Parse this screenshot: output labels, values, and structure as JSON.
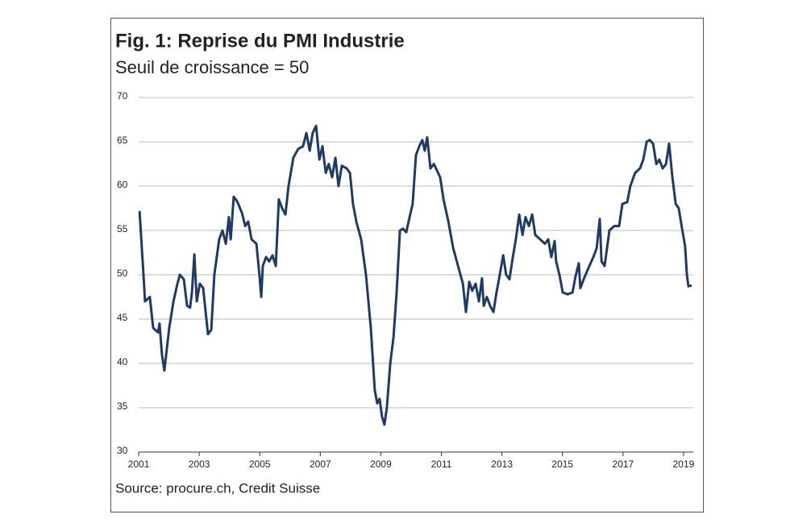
{
  "chart_data": {
    "type": "line",
    "title": "Fig. 1: Reprise du PMI Industrie",
    "subtitle": "Seuil de croissance = 50",
    "source": "Source: procure.ch, Credit Suisse",
    "color": "#1f3a63",
    "x": [
      2001.03,
      2001.16,
      2001.21,
      2001.37,
      2001.48,
      2001.64,
      2001.69,
      2001.77,
      2001.85,
      2002.01,
      2002.15,
      2002.28,
      2002.36,
      2002.49,
      2002.6,
      2002.7,
      2002.76,
      2002.84,
      2002.92,
      2003.02,
      2003.13,
      2003.29,
      2003.4,
      2003.5,
      2003.66,
      2003.77,
      2003.88,
      2003.98,
      2004.04,
      2004.14,
      2004.25,
      2004.41,
      2004.52,
      2004.62,
      2004.73,
      2004.89,
      2004.99,
      2005.05,
      2005.1,
      2005.21,
      2005.31,
      2005.42,
      2005.53,
      2005.63,
      2005.74,
      2005.85,
      2005.95,
      2006.11,
      2006.27,
      2006.43,
      2006.54,
      2006.65,
      2006.75,
      2006.86,
      2006.97,
      2007.07,
      2007.18,
      2007.28,
      2007.39,
      2007.5,
      2007.6,
      2007.71,
      2007.87,
      2007.98,
      2008.08,
      2008.19,
      2008.35,
      2008.51,
      2008.67,
      2008.8,
      2008.88,
      2008.96,
      2009.04,
      2009.12,
      2009.2,
      2009.31,
      2009.42,
      2009.52,
      2009.63,
      2009.73,
      2009.84,
      2009.95,
      2010.05,
      2010.16,
      2010.27,
      2010.37,
      2010.45,
      2010.53,
      2010.64,
      2010.75,
      2010.85,
      2010.96,
      2011.07,
      2011.23,
      2011.39,
      2011.55,
      2011.71,
      2011.81,
      2011.92,
      2012.02,
      2012.13,
      2012.24,
      2012.34,
      2012.4,
      2012.5,
      2012.61,
      2012.72,
      2012.82,
      2012.93,
      2013.04,
      2013.14,
      2013.25,
      2013.36,
      2013.46,
      2013.57,
      2013.68,
      2013.78,
      2013.89,
      2014.0,
      2014.1,
      2014.26,
      2014.42,
      2014.53,
      2014.63,
      2014.74,
      2014.79,
      2014.9,
      2015.01,
      2015.17,
      2015.33,
      2015.43,
      2015.54,
      2015.59,
      2015.7,
      2015.86,
      2016.02,
      2016.13,
      2016.23,
      2016.29,
      2016.39,
      2016.55,
      2016.71,
      2016.87,
      2016.98,
      2017.14,
      2017.24,
      2017.4,
      2017.56,
      2017.67,
      2017.78,
      2017.88,
      2017.99,
      2018.1,
      2018.2,
      2018.31,
      2018.42,
      2018.52,
      2018.63,
      2018.74,
      2018.84,
      2018.95,
      2019.0,
      2019.05,
      2019.11,
      2019.16,
      2019.27
    ],
    "values": [
      57.2,
      50,
      47,
      47.5,
      44,
      43.5,
      44.5,
      41,
      39.2,
      44,
      47,
      49,
      50,
      49.5,
      46.5,
      46.3,
      48,
      52.3,
      47,
      49,
      48.5,
      43.3,
      43.8,
      50,
      54,
      55,
      53.5,
      56.5,
      54,
      58.8,
      58.3,
      57,
      55.5,
      56,
      54,
      53.5,
      50,
      47.5,
      51,
      52,
      51.5,
      52.2,
      51,
      58.5,
      57.5,
      56.8,
      60,
      63.2,
      64.2,
      64.5,
      66,
      64,
      66,
      66.8,
      63,
      64.5,
      61.5,
      62.5,
      61,
      63.2,
      60,
      62.3,
      62,
      61.5,
      58,
      56,
      54,
      50,
      44,
      37,
      35.5,
      36,
      34,
      33.1,
      35,
      40,
      43,
      48,
      55,
      55.2,
      54.8,
      56.5,
      58,
      63.5,
      64.5,
      65.2,
      64,
      65.5,
      62,
      62.5,
      61.8,
      61,
      58.5,
      56,
      53,
      51,
      49,
      45.8,
      49.2,
      48.2,
      49,
      47,
      49.6,
      46.5,
      47.5,
      46.5,
      45.8,
      48,
      50,
      52.2,
      50,
      49.5,
      52,
      54,
      56.8,
      54.5,
      56.5,
      55.5,
      56.8,
      54.5,
      54,
      53.5,
      54,
      52,
      53.8,
      51.5,
      50,
      48,
      47.8,
      48,
      49.8,
      51.3,
      48.5,
      49.5,
      50.8,
      52,
      53,
      56.3,
      51.5,
      51,
      55,
      55.5,
      55.5,
      58,
      58.2,
      60,
      61.5,
      62,
      63,
      65,
      65.2,
      64.8,
      62.5,
      63,
      62,
      62.5,
      64.8,
      61,
      58,
      57.5,
      55.2,
      54.2,
      53.2,
      50,
      48.7,
      48.8
    ],
    "xlim": [
      2001,
      2019.32
    ],
    "xticks": [
      2001,
      2003,
      2005,
      2007,
      2009,
      2011,
      2013,
      2015,
      2017,
      2019
    ],
    "ylim": [
      30,
      70
    ],
    "yticks": [
      30,
      35,
      40,
      45,
      50,
      55,
      60,
      65,
      70
    ],
    "grid": true
  }
}
